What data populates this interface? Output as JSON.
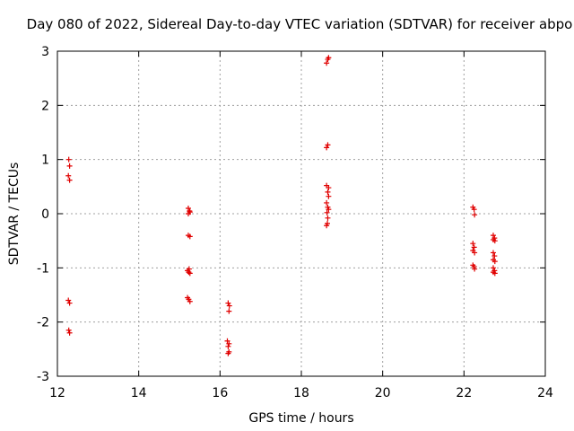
{
  "chart_data": {
    "type": "scatter",
    "title": "Day 080 of 2022, Sidereal Day-to-day VTEC variation (SDTVAR) for receiver abpo",
    "xlabel": "GPS time / hours",
    "ylabel": "SDTVAR / TECUs",
    "xlim": [
      12,
      24
    ],
    "ylim": [
      -3,
      3
    ],
    "xticks": [
      "12",
      "14",
      "16",
      "18",
      "20",
      "22",
      "24"
    ],
    "yticks": [
      "-3",
      "-2",
      "-1",
      "0",
      "1",
      "2",
      "3"
    ],
    "grid": true,
    "marker": "plus",
    "color": "#e00000",
    "points": [
      [
        12.28,
        1.0
      ],
      [
        12.3,
        0.88
      ],
      [
        12.27,
        0.7
      ],
      [
        12.3,
        0.62
      ],
      [
        12.27,
        -1.6
      ],
      [
        12.3,
        -1.65
      ],
      [
        12.28,
        -2.15
      ],
      [
        12.3,
        -2.2
      ],
      [
        15.22,
        0.1
      ],
      [
        15.25,
        0.05
      ],
      [
        15.22,
        0.0
      ],
      [
        15.26,
        0.03
      ],
      [
        15.22,
        -0.4
      ],
      [
        15.26,
        -0.42
      ],
      [
        15.2,
        -1.05
      ],
      [
        15.23,
        -1.08
      ],
      [
        15.26,
        -1.1
      ],
      [
        15.24,
        -1.02
      ],
      [
        15.2,
        -1.55
      ],
      [
        15.23,
        -1.58
      ],
      [
        15.26,
        -1.62
      ],
      [
        16.2,
        -1.65
      ],
      [
        16.23,
        -1.7
      ],
      [
        16.22,
        -1.8
      ],
      [
        16.18,
        -2.35
      ],
      [
        16.22,
        -2.4
      ],
      [
        16.2,
        -2.45
      ],
      [
        16.22,
        -2.55
      ],
      [
        16.2,
        -2.58
      ],
      [
        18.62,
        2.78
      ],
      [
        18.65,
        2.85
      ],
      [
        18.67,
        2.88
      ],
      [
        18.62,
        1.22
      ],
      [
        18.65,
        1.27
      ],
      [
        18.62,
        0.52
      ],
      [
        18.67,
        0.48
      ],
      [
        18.65,
        0.4
      ],
      [
        18.67,
        0.32
      ],
      [
        18.62,
        0.2
      ],
      [
        18.65,
        0.12
      ],
      [
        18.67,
        0.08
      ],
      [
        18.63,
        0.02
      ],
      [
        18.65,
        -0.08
      ],
      [
        18.64,
        -0.18
      ],
      [
        18.62,
        -0.22
      ],
      [
        22.22,
        0.12
      ],
      [
        22.25,
        0.08
      ],
      [
        22.26,
        -0.02
      ],
      [
        22.22,
        -0.55
      ],
      [
        22.25,
        -0.62
      ],
      [
        22.22,
        -0.68
      ],
      [
        22.26,
        -0.72
      ],
      [
        22.22,
        -0.95
      ],
      [
        22.25,
        -0.98
      ],
      [
        22.26,
        -1.02
      ],
      [
        22.72,
        -0.4
      ],
      [
        22.75,
        -0.45
      ],
      [
        22.72,
        -0.48
      ],
      [
        22.76,
        -0.5
      ],
      [
        22.72,
        -0.72
      ],
      [
        22.75,
        -0.78
      ],
      [
        22.72,
        -0.85
      ],
      [
        22.76,
        -0.88
      ],
      [
        22.72,
        -1.0
      ],
      [
        22.75,
        -1.05
      ],
      [
        22.72,
        -1.08
      ],
      [
        22.76,
        -1.1
      ]
    ]
  }
}
